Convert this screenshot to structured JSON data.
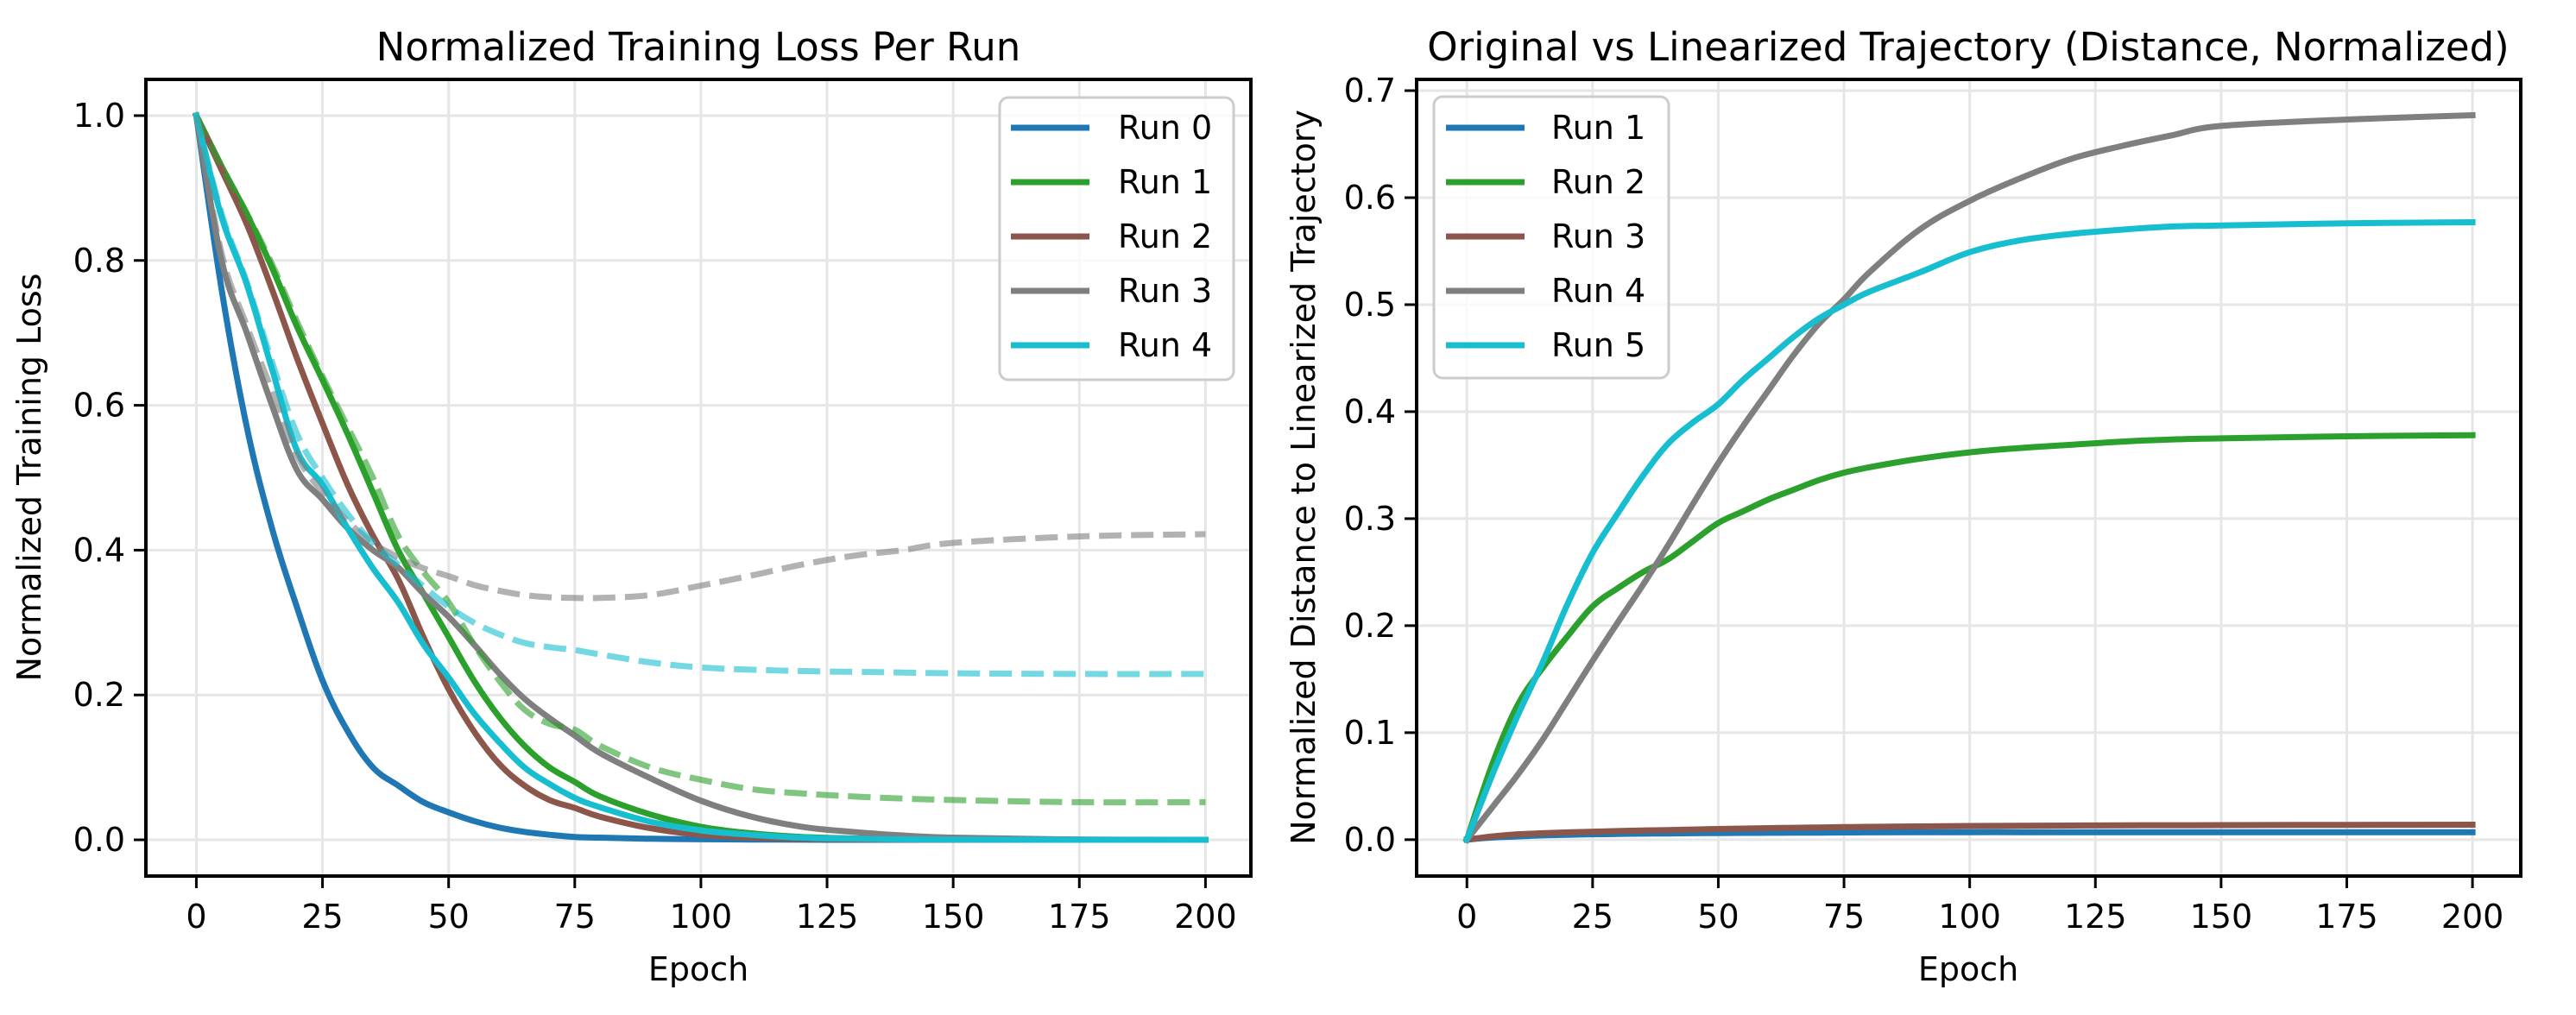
{
  "chart_data": [
    {
      "type": "line",
      "title": "Normalized Training Loss Per Run",
      "xlabel": "Epoch",
      "ylabel": "Normalized Training Loss",
      "xlim": [
        -10,
        209
      ],
      "ylim": [
        -0.05,
        1.05
      ],
      "xticks": [
        0,
        25,
        50,
        75,
        100,
        125,
        150,
        175,
        200
      ],
      "xtick_labels": [
        "0",
        "25",
        "50",
        "75",
        "100",
        "125",
        "150",
        "175",
        "200"
      ],
      "yticks": [
        0.0,
        0.2,
        0.4,
        0.6,
        0.8,
        1.0
      ],
      "ytick_labels": [
        "0.0",
        "0.2",
        "0.4",
        "0.6",
        "0.8",
        "1.0"
      ],
      "grid": true,
      "legend_position": "top-right",
      "x": [
        0,
        5,
        10,
        15,
        20,
        25,
        30,
        35,
        40,
        45,
        50,
        55,
        60,
        65,
        70,
        75,
        80,
        90,
        100,
        110,
        120,
        130,
        140,
        150,
        175,
        200
      ],
      "series": [
        {
          "name": "Run 0",
          "color": "#1f77b4",
          "style": "solid",
          "in_legend": true,
          "values": [
            1,
            0.76,
            0.57,
            0.43,
            0.32,
            0.22,
            0.15,
            0.1,
            0.075,
            0.052,
            0.038,
            0.026,
            0.017,
            0.011,
            0.007,
            0.004,
            0.003,
            0.0015,
            0.0008,
            0.0004,
            0.0002,
            0,
            0,
            0,
            0,
            0
          ]
        },
        {
          "name": "Run 1",
          "color": "#2ca02c",
          "style": "solid",
          "in_legend": true,
          "values": [
            1,
            0.93,
            0.864,
            0.79,
            0.708,
            0.635,
            0.56,
            0.48,
            0.4,
            0.34,
            0.28,
            0.22,
            0.17,
            0.13,
            0.1,
            0.08,
            0.06,
            0.035,
            0.018,
            0.009,
            0.004,
            0.002,
            0.001,
            0.0005,
            0,
            0
          ]
        },
        {
          "name": "Run 2",
          "color": "#8c564b",
          "style": "solid",
          "in_legend": true,
          "values": [
            1,
            0.925,
            0.85,
            0.76,
            0.664,
            0.575,
            0.49,
            0.42,
            0.36,
            0.28,
            0.208,
            0.15,
            0.105,
            0.075,
            0.055,
            0.044,
            0.032,
            0.016,
            0.007,
            0.003,
            0.0015,
            0.0007,
            0.0003,
            0,
            0,
            0
          ]
        },
        {
          "name": "Run 3",
          "color": "#7f7f7f",
          "style": "solid",
          "in_legend": true,
          "values": [
            1,
            0.8,
            0.7,
            0.6,
            0.51,
            0.47,
            0.43,
            0.4,
            0.376,
            0.34,
            0.308,
            0.27,
            0.23,
            0.195,
            0.168,
            0.144,
            0.12,
            0.085,
            0.054,
            0.032,
            0.018,
            0.011,
            0.006,
            0.003,
            0.0005,
            0
          ]
        },
        {
          "name": "Run 4",
          "color": "#17becf",
          "style": "solid",
          "in_legend": true,
          "values": [
            1,
            0.86,
            0.767,
            0.65,
            0.537,
            0.49,
            0.43,
            0.375,
            0.328,
            0.27,
            0.224,
            0.175,
            0.135,
            0.1,
            0.077,
            0.058,
            0.045,
            0.025,
            0.013,
            0.007,
            0.003,
            0.0015,
            0.0007,
            0.0003,
            0,
            0
          ]
        },
        {
          "name": "Run 1 (linearized)",
          "color": "#2ca02c",
          "style": "dashed",
          "opacity": 0.6,
          "in_legend": false,
          "values": [
            1,
            0.93,
            0.865,
            0.795,
            0.715,
            0.64,
            0.57,
            0.5,
            0.42,
            0.37,
            0.328,
            0.27,
            0.22,
            0.18,
            0.16,
            0.152,
            0.13,
            0.1,
            0.083,
            0.07,
            0.064,
            0.06,
            0.057,
            0.055,
            0.052,
            0.052
          ]
        },
        {
          "name": "Run 3 (linearized)",
          "color": "#7f7f7f",
          "style": "dashed",
          "opacity": 0.6,
          "in_legend": false,
          "values": [
            1,
            0.81,
            0.71,
            0.62,
            0.53,
            0.48,
            0.44,
            0.41,
            0.39,
            0.375,
            0.364,
            0.352,
            0.344,
            0.338,
            0.335,
            0.334,
            0.334,
            0.338,
            0.351,
            0.365,
            0.38,
            0.392,
            0.4,
            0.41,
            0.419,
            0.422
          ]
        },
        {
          "name": "Run 4 (linearized)",
          "color": "#17becf",
          "style": "dashed",
          "opacity": 0.6,
          "in_legend": false,
          "values": [
            1,
            0.865,
            0.77,
            0.66,
            0.56,
            0.5,
            0.45,
            0.41,
            0.38,
            0.35,
            0.322,
            0.3,
            0.284,
            0.272,
            0.266,
            0.262,
            0.256,
            0.245,
            0.238,
            0.235,
            0.233,
            0.232,
            0.231,
            0.23,
            0.229,
            0.229
          ]
        }
      ]
    },
    {
      "type": "line",
      "title": "Original vs Linearized Trajectory (Distance, Normalized)",
      "xlabel": "Epoch",
      "ylabel": "Normalized Distance to Linearized Trajectory",
      "xlim": [
        -10,
        209.6
      ],
      "ylim": [
        -0.034,
        0.7105
      ],
      "xticks": [
        0,
        25,
        50,
        75,
        100,
        125,
        150,
        175,
        200
      ],
      "xtick_labels": [
        "0",
        "25",
        "50",
        "75",
        "100",
        "125",
        "150",
        "175",
        "200"
      ],
      "yticks": [
        0.0,
        0.1,
        0.2,
        0.3,
        0.4,
        0.5,
        0.6,
        0.7
      ],
      "ytick_labels": [
        "0.0",
        "0.1",
        "0.2",
        "0.3",
        "0.4",
        "0.5",
        "0.6",
        "0.7"
      ],
      "grid": true,
      "legend_position": "top-left",
      "x": [
        0,
        5,
        10,
        15,
        20,
        25,
        30,
        35,
        40,
        45,
        50,
        55,
        60,
        65,
        70,
        75,
        80,
        90,
        100,
        110,
        120,
        130,
        140,
        150,
        175,
        200
      ],
      "series": [
        {
          "name": "Run 1",
          "color": "#1f77b4",
          "style": "solid",
          "in_legend": true,
          "values": [
            0,
            0.002,
            0.003,
            0.004,
            0.0045,
            0.005,
            0.0053,
            0.0056,
            0.0058,
            0.006,
            0.0062,
            0.0063,
            0.0064,
            0.0065,
            0.0066,
            0.0067,
            0.0068,
            0.0069,
            0.007,
            0.007,
            0.007,
            0.007,
            0.007,
            0.007,
            0.007,
            0.007
          ]
        },
        {
          "name": "Run 2",
          "color": "#2ca02c",
          "style": "solid",
          "in_legend": true,
          "values": [
            0,
            0.07,
            0.125,
            0.16,
            0.19,
            0.218,
            0.235,
            0.25,
            0.262,
            0.279,
            0.296,
            0.307,
            0.318,
            0.327,
            0.336,
            0.343,
            0.348,
            0.356,
            0.362,
            0.366,
            0.369,
            0.372,
            0.374,
            0.375,
            0.377,
            0.378
          ]
        },
        {
          "name": "Run 3",
          "color": "#8c564b",
          "style": "solid",
          "in_legend": true,
          "values": [
            0,
            0.003,
            0.005,
            0.006,
            0.0068,
            0.0075,
            0.008,
            0.0086,
            0.009,
            0.0095,
            0.01,
            0.0104,
            0.0108,
            0.0111,
            0.0114,
            0.0117,
            0.012,
            0.0124,
            0.0128,
            0.013,
            0.0132,
            0.0134,
            0.0135,
            0.0136,
            0.0138,
            0.014
          ]
        },
        {
          "name": "Run 4",
          "color": "#7f7f7f",
          "style": "solid",
          "in_legend": true,
          "values": [
            0,
            0.03,
            0.06,
            0.093,
            0.13,
            0.167,
            0.203,
            0.238,
            0.275,
            0.314,
            0.352,
            0.387,
            0.42,
            0.453,
            0.482,
            0.505,
            0.53,
            0.57,
            0.597,
            0.618,
            0.636,
            0.648,
            0.658,
            0.667,
            0.673,
            0.677
          ]
        },
        {
          "name": "Run 5",
          "color": "#17becf",
          "style": "solid",
          "in_legend": true,
          "values": [
            0,
            0.06,
            0.115,
            0.165,
            0.22,
            0.268,
            0.305,
            0.34,
            0.37,
            0.39,
            0.407,
            0.43,
            0.45,
            0.47,
            0.487,
            0.5,
            0.512,
            0.53,
            0.549,
            0.56,
            0.566,
            0.57,
            0.573,
            0.574,
            0.576,
            0.577
          ]
        }
      ]
    }
  ]
}
